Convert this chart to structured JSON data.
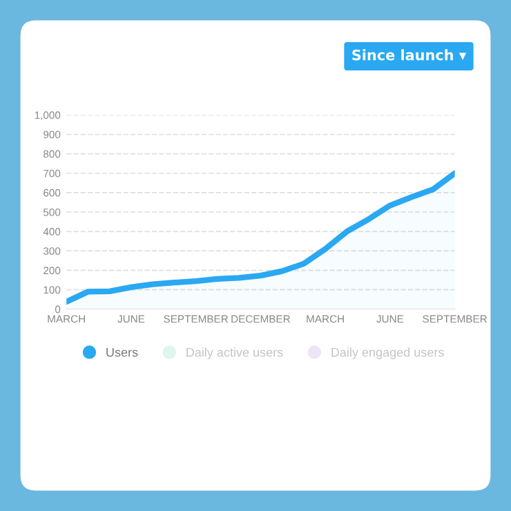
{
  "chart_data": {
    "type": "area",
    "annotations": [
      "Since launch ▾"
    ],
    "categories": [
      "MARCH",
      null,
      null,
      "JUNE",
      null,
      null,
      "SEPTEMBER",
      null,
      null,
      "DECEMBER",
      null,
      null,
      "MARCH",
      null,
      null,
      "JUNE",
      null,
      null,
      "SEPTEMBER"
    ],
    "series": [
      {
        "name": "Users",
        "color": "#2aa8f2",
        "values": [
          38,
          90,
          92,
          113,
          128,
          137,
          144,
          156,
          161,
          173,
          196,
          234,
          310,
          400,
          463,
          534,
          577,
          617,
          700
        ]
      },
      {
        "name": "Daily active users",
        "color": "#dff5ef",
        "values": [
          null,
          null,
          null,
          null,
          null,
          null,
          null,
          null,
          null,
          null,
          null,
          null,
          null,
          null,
          null,
          null,
          null,
          null,
          null
        ]
      },
      {
        "name": "Daily engaged users",
        "color": "#efe3f7",
        "values": [
          null,
          null,
          null,
          null,
          null,
          null,
          null,
          null,
          null,
          null,
          null,
          null,
          null,
          null,
          null,
          null,
          null,
          null,
          null
        ]
      }
    ],
    "ylim": [
      0,
      1000
    ],
    "yticks": [
      0,
      100,
      200,
      300,
      400,
      500,
      600,
      700,
      800,
      900,
      {
        "value": 1000,
        "label": "1,000"
      }
    ],
    "grid": "y",
    "legend": "bottom",
    "marker": "none",
    "line_style": "solid"
  }
}
